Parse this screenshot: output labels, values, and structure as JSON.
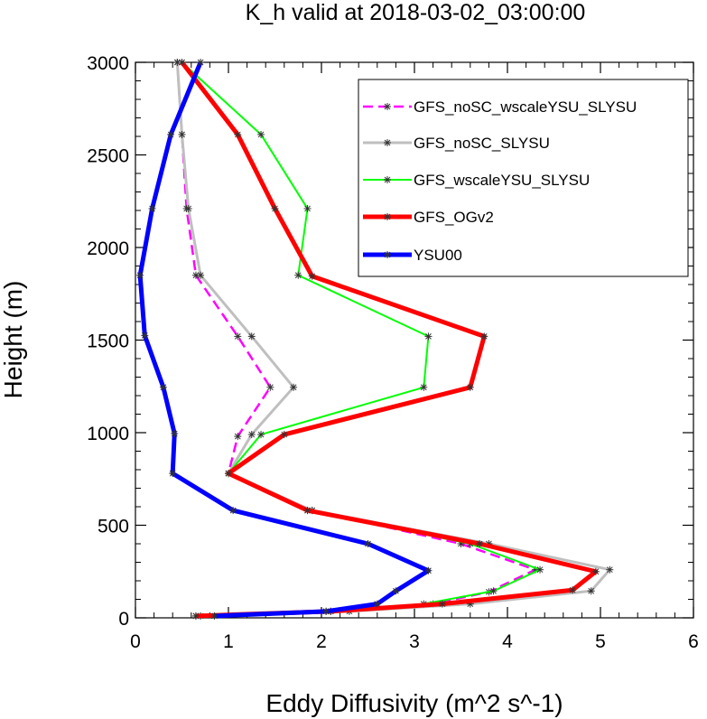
{
  "chart_data": {
    "type": "line",
    "title": "K_h valid at 2018-03-02_03:00:00",
    "xlabel": "Eddy Diffusivity (m^2 s^-1)",
    "ylabel": "Height (m)",
    "xlim": [
      0,
      6
    ],
    "ylim": [
      0,
      3000
    ],
    "x_ticks": [
      "0",
      "1",
      "2",
      "3",
      "4",
      "5",
      "6"
    ],
    "y_ticks": [
      "0",
      "500",
      "1000",
      "1500",
      "2000",
      "2500",
      "3000"
    ],
    "grid": false,
    "legend_position": "top-right",
    "series": [
      {
        "name": "GFS_noSC_wscaleYSU_SLYSU",
        "color": "#ff00ff",
        "style": "dashed",
        "points": [
          [
            0.65,
            10
          ],
          [
            2.05,
            35
          ],
          [
            3.2,
            75
          ],
          [
            3.8,
            140
          ],
          [
            4.3,
            260
          ],
          [
            3.5,
            400
          ],
          [
            1.9,
            580
          ],
          [
            1.0,
            780
          ],
          [
            1.1,
            980
          ],
          [
            1.45,
            1245
          ],
          [
            1.1,
            1520
          ],
          [
            0.65,
            1850
          ],
          [
            0.55,
            2210
          ],
          [
            0.5,
            2610
          ],
          [
            0.45,
            3000
          ]
        ]
      },
      {
        "name": "GFS_noSC_SLYSU",
        "color": "#bfbfbf",
        "style": "solid",
        "points": [
          [
            0.7,
            10
          ],
          [
            2.3,
            35
          ],
          [
            3.6,
            75
          ],
          [
            4.9,
            145
          ],
          [
            5.1,
            260
          ],
          [
            3.8,
            400
          ],
          [
            1.9,
            580
          ],
          [
            1.0,
            780
          ],
          [
            1.25,
            990
          ],
          [
            1.7,
            1245
          ],
          [
            1.25,
            1520
          ],
          [
            0.7,
            1850
          ],
          [
            0.57,
            2210
          ],
          [
            0.5,
            2610
          ],
          [
            0.45,
            3000
          ]
        ]
      },
      {
        "name": "GFS_wscaleYSU_SLYSU",
        "color": "#00ff00",
        "style": "solid",
        "points": [
          [
            0.65,
            10
          ],
          [
            2.1,
            35
          ],
          [
            3.1,
            75
          ],
          [
            3.85,
            145
          ],
          [
            4.35,
            260
          ],
          [
            3.6,
            400
          ],
          [
            1.85,
            580
          ],
          [
            1.0,
            780
          ],
          [
            1.35,
            990
          ],
          [
            3.1,
            1245
          ],
          [
            3.15,
            1520
          ],
          [
            1.75,
            1850
          ],
          [
            1.85,
            2210
          ],
          [
            1.35,
            2610
          ],
          [
            0.5,
            3000
          ]
        ]
      },
      {
        "name": "GFS_OGv2",
        "color": "#ff0000",
        "style": "solid",
        "points": [
          [
            0.65,
            10
          ],
          [
            2.1,
            35
          ],
          [
            3.3,
            75
          ],
          [
            4.7,
            150
          ],
          [
            4.95,
            250
          ],
          [
            3.7,
            400
          ],
          [
            1.85,
            580
          ],
          [
            1.0,
            780
          ],
          [
            1.6,
            990
          ],
          [
            3.6,
            1245
          ],
          [
            3.75,
            1520
          ],
          [
            1.9,
            1845
          ],
          [
            1.5,
            2210
          ],
          [
            1.1,
            2610
          ],
          [
            0.5,
            3000
          ]
        ]
      },
      {
        "name": "YSU00",
        "color": "#0000ff",
        "style": "solid",
        "points": [
          [
            0.85,
            10
          ],
          [
            2.05,
            35
          ],
          [
            2.6,
            75
          ],
          [
            2.8,
            145
          ],
          [
            3.15,
            255
          ],
          [
            2.5,
            400
          ],
          [
            1.05,
            580
          ],
          [
            0.4,
            780
          ],
          [
            0.42,
            995
          ],
          [
            0.3,
            1245
          ],
          [
            0.1,
            1525
          ],
          [
            0.05,
            1850
          ],
          [
            0.18,
            2210
          ],
          [
            0.38,
            2610
          ],
          [
            0.7,
            3000
          ]
        ]
      }
    ]
  }
}
